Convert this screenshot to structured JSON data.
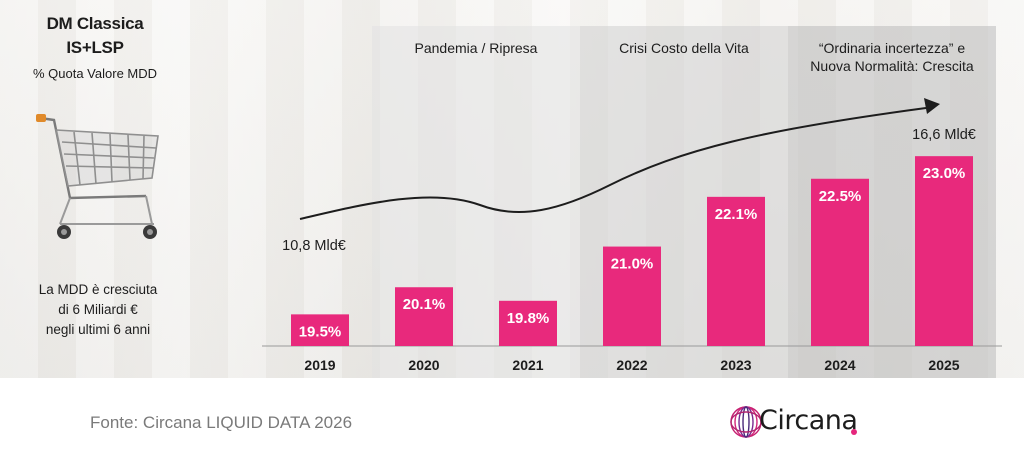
{
  "left_panel": {
    "title_line1": "DM Classica",
    "title_line2": "IS+LSP",
    "subtitle": "% Quota Valore MDD",
    "note_line1": "La MDD è cresciuta",
    "note_line2": "di 6 Miliardi €",
    "note_line3": "negli ultimi 6 anni",
    "icon": "shopping-cart-icon"
  },
  "chart_data": {
    "type": "bar",
    "categories": [
      "2019",
      "2020",
      "2021",
      "2022",
      "2023",
      "2024",
      "2025"
    ],
    "values": [
      19.5,
      20.1,
      19.8,
      21.0,
      22.1,
      22.5,
      23.0
    ],
    "data_labels": [
      "19.5%",
      "20.1%",
      "19.8%",
      "21.0%",
      "22.1%",
      "22.5%",
      "23.0%"
    ],
    "bar_color": "#e8297c",
    "ylim": [
      18.8,
      23.8
    ],
    "grid": false,
    "phases": [
      {
        "label": "Pandemia / Ripresa",
        "from": "2020",
        "to": "2021"
      },
      {
        "label": "Crisi Costo della Vita",
        "from": "2022",
        "to": "2023"
      },
      {
        "label_line1": "“Ordinaria incertezza” e",
        "label_line2": "Nuova Normalità: Crescita",
        "from": "2024",
        "to": "2025"
      }
    ],
    "trend": {
      "start_label": "10,8 Mld€",
      "end_label": "16,6 Mld€",
      "start_year": "2019",
      "end_year": "2025"
    }
  },
  "footer": {
    "source": "Fonte: Circana LIQUID DATA 2026",
    "logo_text": "Circana",
    "accent": "#e5267c"
  }
}
